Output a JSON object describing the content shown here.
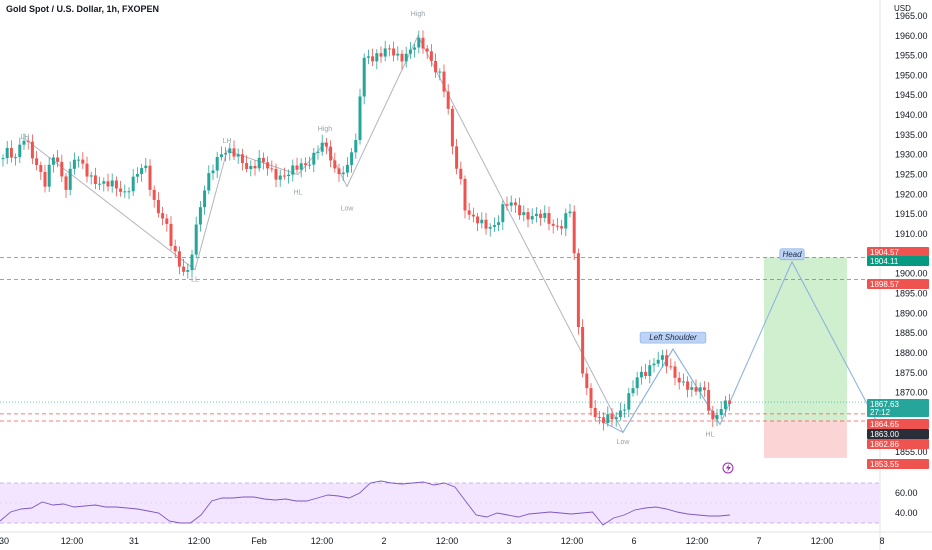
{
  "header": {
    "title": "Gold Spot / U.S. Dollar, 1h, FXOPEN",
    "currency": "USD"
  },
  "colors": {
    "up": "#26a69a",
    "down": "#ef5350",
    "wave": "#b2b5be",
    "projection": "#90b4e0",
    "rsi_line": "#7e57c2",
    "rsi_fill": "#f3e5ff",
    "target_zone": "#c8ecc6",
    "stop_zone": "#fbd0d0"
  },
  "chart_data": {
    "type": "candlestick",
    "y_axis": {
      "range": [
        1850,
        1967
      ],
      "ticks": [
        1855,
        1860,
        1865,
        1870,
        1875,
        1880,
        1885,
        1890,
        1895,
        1900,
        1905,
        1910,
        1915,
        1920,
        1925,
        1930,
        1935,
        1940,
        1945,
        1950,
        1955,
        1960,
        1965
      ]
    },
    "x_axis": {
      "ticks": [
        "30",
        "12:00",
        "31",
        "12:00",
        "Feb",
        "12:00",
        "2",
        "12:00",
        "3",
        "12:00",
        "6",
        "12:00",
        "7",
        "12:00",
        "8"
      ]
    },
    "price_path": [
      [
        0,
        1929
      ],
      [
        5,
        1932
      ],
      [
        15,
        1928
      ],
      [
        25,
        1935
      ],
      [
        35,
        1929
      ],
      [
        45,
        1922
      ],
      [
        55,
        1931
      ],
      [
        65,
        1922
      ],
      [
        75,
        1929
      ],
      [
        85,
        1926
      ],
      [
        95,
        1924
      ],
      [
        105,
        1922
      ],
      [
        115,
        1922
      ],
      [
        125,
        1921
      ],
      [
        135,
        1924
      ],
      [
        145,
        1927
      ],
      [
        155,
        1918
      ],
      [
        165,
        1913
      ],
      [
        172,
        1906
      ],
      [
        180,
        1902
      ],
      [
        188,
        1901
      ],
      [
        196,
        1911
      ],
      [
        202,
        1918
      ],
      [
        208,
        1924
      ],
      [
        215,
        1929
      ],
      [
        222,
        1931
      ],
      [
        230,
        1930
      ],
      [
        240,
        1929
      ],
      [
        250,
        1927
      ],
      [
        260,
        1928
      ],
      [
        270,
        1926
      ],
      [
        280,
        1925
      ],
      [
        290,
        1925
      ],
      [
        300,
        1927
      ],
      [
        310,
        1929
      ],
      [
        320,
        1932
      ],
      [
        328,
        1931
      ],
      [
        334,
        1926
      ],
      [
        340,
        1927
      ],
      [
        345,
        1925
      ],
      [
        350,
        1930
      ],
      [
        356,
        1932
      ],
      [
        360,
        1945
      ],
      [
        365,
        1956
      ],
      [
        372,
        1955
      ],
      [
        380,
        1955
      ],
      [
        390,
        1956
      ],
      [
        400,
        1955
      ],
      [
        410,
        1956
      ],
      [
        420,
        1958
      ],
      [
        428,
        1956
      ],
      [
        434,
        1953
      ],
      [
        440,
        1950
      ],
      [
        447,
        1943
      ],
      [
        453,
        1930
      ],
      [
        460,
        1925
      ],
      [
        466,
        1916
      ],
      [
        472,
        1914
      ],
      [
        480,
        1912
      ],
      [
        488,
        1912
      ],
      [
        496,
        1913
      ],
      [
        504,
        1917
      ],
      [
        512,
        1917
      ],
      [
        520,
        1916
      ],
      [
        528,
        1915
      ],
      [
        536,
        1914
      ],
      [
        544,
        1914
      ],
      [
        552,
        1913
      ],
      [
        560,
        1912
      ],
      [
        566,
        1914
      ],
      [
        572,
        1916
      ],
      [
        576,
        1895
      ],
      [
        580,
        1880
      ],
      [
        585,
        1873
      ],
      [
        590,
        1868
      ],
      [
        596,
        1863
      ],
      [
        602,
        1862
      ],
      [
        610,
        1864
      ],
      [
        618,
        1865
      ],
      [
        626,
        1867
      ],
      [
        632,
        1870
      ],
      [
        638,
        1874
      ],
      [
        646,
        1876
      ],
      [
        654,
        1878
      ],
      [
        662,
        1878
      ],
      [
        670,
        1876
      ],
      [
        678,
        1874
      ],
      [
        686,
        1872
      ],
      [
        694,
        1869
      ],
      [
        702,
        1872
      ],
      [
        708,
        1868
      ],
      [
        712,
        1863
      ],
      [
        718,
        1865
      ],
      [
        724,
        1866
      ],
      [
        730,
        1867.63
      ]
    ],
    "price_lines": [
      {
        "label": "1904.57",
        "value": 1904.57,
        "color": "#ef5350"
      },
      {
        "label": "1904.11",
        "value": 1904.11,
        "color": "#089981"
      },
      {
        "label": "1898.57",
        "value": 1898.57,
        "color": "#ef5350"
      },
      {
        "label": "1867.63",
        "value": 1867.63,
        "color": "#26a69a",
        "countdown": "27:12"
      },
      {
        "label": "1864.65",
        "value": 1864.65,
        "color": "#ef5350"
      },
      {
        "label": "1863.00",
        "value": 1863.0,
        "color": "#2a2e39"
      },
      {
        "label": "1862.86",
        "value": 1862.86,
        "color": "#ef5350"
      },
      {
        "label": "1853.55",
        "value": 1853.55,
        "color": "#ef5350"
      }
    ],
    "wave_labels": [
      {
        "text": "LH",
        "x": 25,
        "y": 1934
      },
      {
        "text": "LL",
        "x": 195,
        "y": 1898
      },
      {
        "text": "LH",
        "x": 227,
        "y": 1933
      },
      {
        "text": "High",
        "x": 325,
        "y": 1936
      },
      {
        "text": "HL",
        "x": 298,
        "y": 1920
      },
      {
        "text": "Low",
        "x": 347,
        "y": 1916
      },
      {
        "text": "High",
        "x": 418,
        "y": 1965
      },
      {
        "text": "Low",
        "x": 623,
        "y": 1857
      },
      {
        "text": "HL",
        "x": 710,
        "y": 1859
      }
    ],
    "pattern_labels": [
      {
        "text": "Left Shoulder",
        "x": 673,
        "y": 1883
      },
      {
        "text": "Head",
        "x": 792,
        "y": 1904
      }
    ],
    "rsi": {
      "ticks": [
        40,
        60
      ],
      "values": [
        32,
        41,
        44,
        45,
        51,
        48,
        49,
        46,
        47,
        48,
        46,
        46,
        45,
        44,
        42,
        40,
        32,
        30,
        30,
        38,
        52,
        55,
        55,
        56,
        56,
        54,
        53,
        54,
        52,
        52,
        55,
        58,
        57,
        55,
        60,
        70,
        72,
        70,
        69,
        70,
        71,
        68,
        70,
        66,
        52,
        38,
        36,
        40,
        38,
        36,
        39,
        40,
        41,
        40,
        39,
        40,
        41,
        28,
        35,
        38,
        43,
        45,
        46,
        44,
        41,
        39,
        38,
        37,
        37,
        38
      ]
    }
  }
}
